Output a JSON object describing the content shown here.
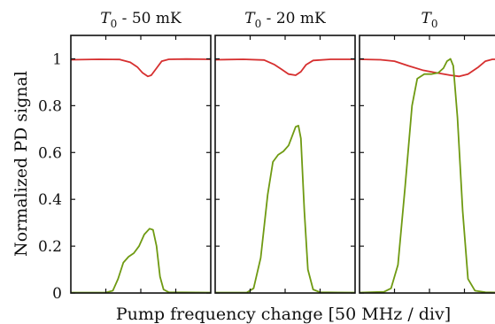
{
  "chart_data": {
    "type": "line",
    "ylabel": "Normalized PD signal",
    "xlabel": "Pump frequency change [50 MHz / div]",
    "ylim": [
      0,
      1.1
    ],
    "yticks": [
      0,
      0.2,
      0.4,
      0.6,
      0.8,
      1
    ],
    "ytick_labels": [
      "0",
      "0.2",
      "0.4",
      "0.6",
      "0.8",
      "1"
    ],
    "x_unit": "div (50 MHz)",
    "grid": false,
    "legend": "none",
    "colors": {
      "red_series": "#d62f2f",
      "green_series": "#6f9a12"
    },
    "panels": [
      {
        "title": {
          "base": "T",
          "sub": "0",
          "rest": " - 50 mK"
        },
        "xlim": [
          0,
          4
        ],
        "series": [
          {
            "color": "#d62f2f",
            "points": [
              [
                0,
                0.996
              ],
              [
                0.8,
                0.998
              ],
              [
                1.4,
                0.997
              ],
              [
                1.7,
                0.985
              ],
              [
                1.9,
                0.965
              ],
              [
                2.05,
                0.94
              ],
              [
                2.2,
                0.925
              ],
              [
                2.3,
                0.93
              ],
              [
                2.45,
                0.96
              ],
              [
                2.6,
                0.99
              ],
              [
                2.8,
                0.998
              ],
              [
                3.3,
                0.999
              ],
              [
                4,
                0.998
              ]
            ]
          },
          {
            "color": "#6f9a12",
            "points": [
              [
                0,
                0.002
              ],
              [
                1.0,
                0.002
              ],
              [
                1.2,
                0.01
              ],
              [
                1.35,
                0.06
              ],
              [
                1.5,
                0.13
              ],
              [
                1.65,
                0.155
              ],
              [
                1.8,
                0.17
              ],
              [
                1.95,
                0.2
              ],
              [
                2.1,
                0.25
              ],
              [
                2.25,
                0.275
              ],
              [
                2.35,
                0.27
              ],
              [
                2.45,
                0.2
              ],
              [
                2.55,
                0.07
              ],
              [
                2.65,
                0.015
              ],
              [
                2.8,
                0.003
              ],
              [
                4,
                0.002
              ]
            ]
          }
        ]
      },
      {
        "title": {
          "base": "T",
          "sub": "0",
          "rest": " - 20 mK"
        },
        "xlim": [
          0,
          4
        ],
        "series": [
          {
            "color": "#d62f2f",
            "points": [
              [
                0,
                0.996
              ],
              [
                0.8,
                0.998
              ],
              [
                1.4,
                0.995
              ],
              [
                1.7,
                0.975
              ],
              [
                1.9,
                0.955
              ],
              [
                2.1,
                0.935
              ],
              [
                2.3,
                0.93
              ],
              [
                2.45,
                0.945
              ],
              [
                2.6,
                0.975
              ],
              [
                2.8,
                0.993
              ],
              [
                3.3,
                0.998
              ],
              [
                4,
                0.998
              ]
            ]
          },
          {
            "color": "#6f9a12",
            "points": [
              [
                0,
                0.002
              ],
              [
                0.9,
                0.002
              ],
              [
                1.1,
                0.02
              ],
              [
                1.3,
                0.15
              ],
              [
                1.5,
                0.42
              ],
              [
                1.65,
                0.56
              ],
              [
                1.8,
                0.59
              ],
              [
                1.95,
                0.605
              ],
              [
                2.1,
                0.63
              ],
              [
                2.2,
                0.67
              ],
              [
                2.3,
                0.71
              ],
              [
                2.38,
                0.715
              ],
              [
                2.45,
                0.66
              ],
              [
                2.55,
                0.35
              ],
              [
                2.65,
                0.1
              ],
              [
                2.8,
                0.015
              ],
              [
                3.0,
                0.003
              ],
              [
                4,
                0.002
              ]
            ]
          }
        ]
      },
      {
        "title": {
          "base": "T",
          "sub": "0",
          "rest": ""
        },
        "xlim": [
          0,
          4
        ],
        "series": [
          {
            "color": "#d62f2f",
            "points": [
              [
                0,
                0.998
              ],
              [
                0.6,
                0.996
              ],
              [
                1.0,
                0.99
              ],
              [
                1.4,
                0.97
              ],
              [
                1.8,
                0.952
              ],
              [
                2.2,
                0.94
              ],
              [
                2.6,
                0.93
              ],
              [
                2.85,
                0.925
              ],
              [
                3.1,
                0.935
              ],
              [
                3.4,
                0.965
              ],
              [
                3.6,
                0.99
              ],
              [
                3.8,
                0.998
              ],
              [
                4,
                0.998
              ]
            ]
          },
          {
            "color": "#6f9a12",
            "points": [
              [
                0,
                0.002
              ],
              [
                0.7,
                0.005
              ],
              [
                0.9,
                0.02
              ],
              [
                1.1,
                0.12
              ],
              [
                1.3,
                0.45
              ],
              [
                1.5,
                0.8
              ],
              [
                1.65,
                0.915
              ],
              [
                1.85,
                0.935
              ],
              [
                2.05,
                0.935
              ],
              [
                2.25,
                0.94
              ],
              [
                2.4,
                0.96
              ],
              [
                2.5,
                0.99
              ],
              [
                2.6,
                1.0
              ],
              [
                2.68,
                0.97
              ],
              [
                2.8,
                0.75
              ],
              [
                2.95,
                0.35
              ],
              [
                3.1,
                0.06
              ],
              [
                3.3,
                0.01
              ],
              [
                3.6,
                0.003
              ],
              [
                4,
                0.002
              ]
            ]
          }
        ]
      }
    ]
  }
}
